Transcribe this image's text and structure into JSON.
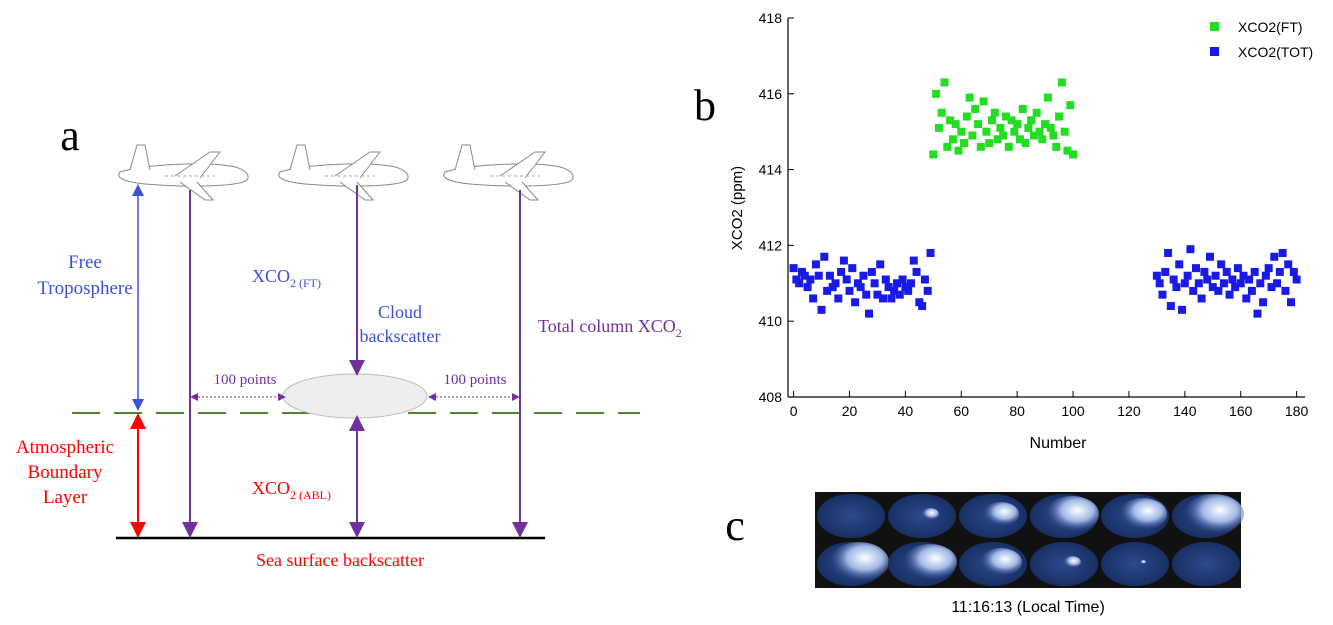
{
  "diagram": {
    "panel_label": "a",
    "free_troposphere": [
      "Free",
      "Troposphere"
    ],
    "xco2_ft": {
      "base": "XCO",
      "sub": "2 (FT)"
    },
    "cloud_backscatter": [
      "Cloud",
      "backscatter"
    ],
    "total_column": {
      "base": "Total column XCO",
      "sub": "2"
    },
    "points_left": "100 points",
    "points_right": "100 points",
    "boundary_layer": [
      "Atmospheric",
      "Boundary",
      "Layer"
    ],
    "xco2_abl": {
      "base": "XCO",
      "sub": "2 (ABL)"
    },
    "sea_surface": "Sea surface backscatter"
  },
  "chart_data": {
    "type": "scatter",
    "panel_label": "b",
    "xlabel": "Number",
    "ylabel": "XCO2 (ppm)",
    "xlim": [
      -2,
      183
    ],
    "ylim": [
      408,
      418
    ],
    "xticks": [
      0,
      20,
      40,
      60,
      80,
      100,
      120,
      140,
      160,
      180
    ],
    "yticks": [
      408,
      410,
      412,
      414,
      416,
      418
    ],
    "legend": "upper right",
    "series": [
      {
        "name": "XCO2(FT)",
        "color": "#22dd22",
        "x": [
          50,
          51,
          52,
          53,
          54,
          55,
          56,
          57,
          58,
          59,
          60,
          61,
          62,
          63,
          64,
          65,
          66,
          67,
          68,
          69,
          70,
          71,
          72,
          73,
          74,
          75,
          76,
          77,
          78,
          79,
          80,
          81,
          82,
          83,
          84,
          85,
          86,
          87,
          88,
          89,
          90,
          91,
          92,
          93,
          94,
          95,
          96,
          97,
          98,
          99,
          100
        ],
        "values": [
          414.4,
          416.0,
          415.1,
          415.5,
          416.3,
          414.6,
          415.3,
          414.8,
          415.2,
          414.5,
          415.0,
          414.7,
          415.4,
          415.9,
          414.9,
          415.6,
          415.2,
          414.6,
          415.8,
          415.0,
          414.7,
          415.3,
          415.5,
          414.8,
          415.1,
          414.9,
          415.4,
          414.6,
          415.3,
          415.0,
          415.2,
          414.8,
          415.6,
          414.7,
          415.1,
          415.3,
          414.9,
          415.5,
          415.0,
          414.8,
          415.2,
          415.9,
          415.1,
          414.9,
          414.6,
          415.4,
          416.3,
          415.0,
          414.5,
          415.7,
          414.4
        ]
      },
      {
        "name": "XCO2(TOT)",
        "color": "#1a1ae6",
        "x": [
          0,
          1,
          2,
          3,
          4,
          5,
          6,
          7,
          8,
          9,
          10,
          11,
          12,
          13,
          14,
          15,
          16,
          17,
          18,
          19,
          20,
          21,
          22,
          23,
          24,
          25,
          26,
          27,
          28,
          29,
          30,
          31,
          32,
          33,
          34,
          35,
          36,
          37,
          38,
          39,
          40,
          41,
          42,
          43,
          44,
          45,
          46,
          47,
          48,
          49,
          130,
          131,
          132,
          133,
          134,
          135,
          136,
          137,
          138,
          139,
          140,
          141,
          142,
          143,
          144,
          145,
          146,
          147,
          148,
          149,
          150,
          151,
          152,
          153,
          154,
          155,
          156,
          157,
          158,
          159,
          160,
          161,
          162,
          163,
          164,
          165,
          166,
          167,
          168,
          169,
          170,
          171,
          172,
          173,
          174,
          175,
          176,
          177,
          178,
          179,
          180
        ],
        "values": [
          411.4,
          411.1,
          411.0,
          411.3,
          411.2,
          410.9,
          411.1,
          410.6,
          411.5,
          411.2,
          410.3,
          411.7,
          410.8,
          411.2,
          410.9,
          411.0,
          410.6,
          411.3,
          411.6,
          411.1,
          410.8,
          411.4,
          410.5,
          411.0,
          410.9,
          411.2,
          410.7,
          410.2,
          411.3,
          411.0,
          410.7,
          411.5,
          410.6,
          411.1,
          410.9,
          410.6,
          410.8,
          411.0,
          410.7,
          411.1,
          410.9,
          410.8,
          411.0,
          411.6,
          411.3,
          410.5,
          410.4,
          411.1,
          410.8,
          411.8,
          411.2,
          411.0,
          410.7,
          411.3,
          411.8,
          410.4,
          411.1,
          410.9,
          411.5,
          410.3,
          411.0,
          411.2,
          411.9,
          410.8,
          411.4,
          411.0,
          410.6,
          411.3,
          411.1,
          411.7,
          410.9,
          411.2,
          410.8,
          411.5,
          411.0,
          411.3,
          410.7,
          411.1,
          410.9,
          411.4,
          411.0,
          411.2,
          410.6,
          411.1,
          410.8,
          411.3,
          410.2,
          411.0,
          410.5,
          411.2,
          411.4,
          410.9,
          411.7,
          411.0,
          411.3,
          411.8,
          410.8,
          411.5,
          410.5,
          411.3,
          411.1
        ]
      }
    ]
  },
  "images": {
    "panel_label": "c",
    "caption": "11:16:13  (Local Time)"
  }
}
